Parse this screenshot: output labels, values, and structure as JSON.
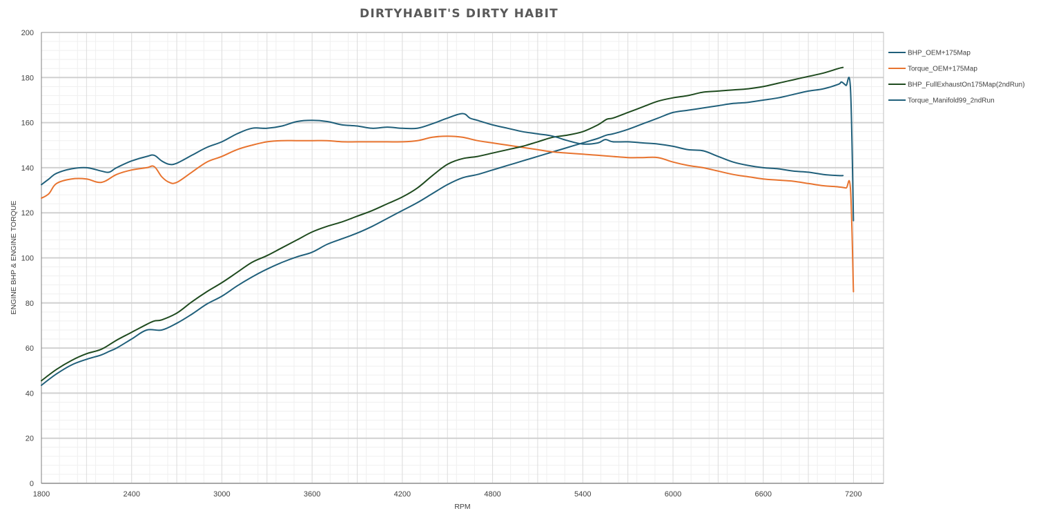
{
  "chart_data": {
    "type": "line",
    "title": "DIRTYHABIT'S DIRTY HABIT",
    "xlabel": "RPM",
    "ylabel": "ENGINE BHP & ENGINE TORQUE",
    "xlim": [
      1800,
      7400
    ],
    "ylim": [
      0,
      200
    ],
    "xticks": [
      1800,
      2400,
      3000,
      3600,
      4200,
      4800,
      5400,
      6000,
      6600,
      7200
    ],
    "yticks": [
      0,
      20,
      40,
      60,
      80,
      100,
      120,
      140,
      160,
      180,
      200
    ],
    "grid": true,
    "legend_position": "right",
    "series": [
      {
        "name": "BHP_OEM+175Map",
        "color": "#1f5f7a",
        "x": [
          1800,
          1900,
          2000,
          2100,
          2200,
          2250,
          2300,
          2400,
          2500,
          2600,
          2700,
          2800,
          2900,
          3000,
          3100,
          3200,
          3300,
          3400,
          3500,
          3600,
          3700,
          3800,
          3900,
          4000,
          4100,
          4200,
          4300,
          4400,
          4500,
          4600,
          4700,
          4800,
          4900,
          5000,
          5100,
          5200,
          5300,
          5400,
          5500,
          5560,
          5600,
          5700,
          5800,
          5900,
          6000,
          6100,
          6200,
          6300,
          6400,
          6500,
          6600,
          6700,
          6800,
          6900,
          7000,
          7100,
          7120,
          7150,
          7180,
          7200
        ],
        "y": [
          43.5,
          48.5,
          52.5,
          55,
          57,
          58.5,
          60,
          64,
          68,
          68,
          71,
          75,
          79.5,
          83,
          87.5,
          91.5,
          95,
          98,
          100.5,
          102.5,
          106,
          108.5,
          111,
          114,
          117.5,
          121,
          124.5,
          128.5,
          132.5,
          135.5,
          137,
          139,
          141,
          143,
          145,
          147,
          149,
          151,
          153,
          154.5,
          155,
          157,
          159.5,
          162,
          164.5,
          165.5,
          166.5,
          167.5,
          168.5,
          169,
          170,
          171,
          172.5,
          174,
          175,
          177,
          178,
          176.5,
          175,
          116.5
        ]
      },
      {
        "name": "Torque_OEM+175Map",
        "color": "#e8732e",
        "x": [
          1800,
          1850,
          1900,
          2000,
          2100,
          2200,
          2300,
          2400,
          2500,
          2550,
          2600,
          2650,
          2700,
          2800,
          2900,
          3000,
          3100,
          3200,
          3300,
          3400,
          3500,
          3600,
          3700,
          3800,
          3900,
          4000,
          4100,
          4200,
          4300,
          4400,
          4500,
          4600,
          4700,
          4800,
          4900,
          5000,
          5100,
          5200,
          5300,
          5400,
          5500,
          5600,
          5700,
          5800,
          5900,
          6000,
          6100,
          6200,
          6300,
          6400,
          6500,
          6600,
          6700,
          6800,
          6900,
          7000,
          7100,
          7150,
          7180,
          7200
        ],
        "y": [
          126.5,
          128.5,
          133,
          135,
          135,
          133.5,
          137,
          139,
          140,
          140.5,
          136,
          133.5,
          133.5,
          138,
          142.5,
          145,
          148,
          150,
          151.5,
          152,
          152,
          152,
          152,
          151.5,
          151.5,
          151.5,
          151.5,
          151.5,
          152,
          153.5,
          154,
          153.5,
          152,
          151,
          150,
          149,
          148,
          147,
          146.5,
          146,
          145.5,
          145,
          144.5,
          144.5,
          144.5,
          142.5,
          141,
          140,
          138.5,
          137,
          136,
          135,
          134.5,
          134,
          133,
          132,
          131.5,
          131,
          130.5,
          85
        ]
      },
      {
        "name": "BHP_FullExhaustOn175Map(2ndRun)",
        "color": "#1e4a1e",
        "x": [
          1800,
          1900,
          2000,
          2100,
          2200,
          2300,
          2400,
          2500,
          2550,
          2600,
          2700,
          2800,
          2900,
          3000,
          3100,
          3200,
          3300,
          3400,
          3500,
          3600,
          3700,
          3800,
          3900,
          4000,
          4100,
          4200,
          4300,
          4400,
          4500,
          4600,
          4700,
          4800,
          4900,
          5000,
          5100,
          5200,
          5300,
          5400,
          5500,
          5560,
          5600,
          5700,
          5800,
          5900,
          6000,
          6100,
          6200,
          6300,
          6400,
          6500,
          6600,
          6700,
          6800,
          6900,
          7000,
          7100,
          7130
        ],
        "y": [
          45.5,
          50.5,
          54.5,
          57.5,
          59.5,
          63.5,
          67,
          70.5,
          72,
          72.5,
          75.5,
          80.5,
          85,
          89,
          93.5,
          98,
          101,
          104.5,
          108,
          111.5,
          114,
          116,
          118.5,
          121,
          124,
          127,
          131,
          136.5,
          141.5,
          144,
          145,
          146.5,
          148,
          149.5,
          151.5,
          153.5,
          154.5,
          156,
          159,
          161.5,
          162,
          164.5,
          167,
          169.5,
          171,
          172,
          173.5,
          174,
          174.5,
          175,
          176,
          177.5,
          179,
          180.5,
          182,
          184,
          184.5
        ]
      },
      {
        "name": "Torque_Manifold99_2ndRun",
        "color": "#1f5f7a",
        "x": [
          1800,
          1850,
          1900,
          2000,
          2100,
          2200,
          2250,
          2300,
          2400,
          2500,
          2550,
          2600,
          2650,
          2700,
          2800,
          2900,
          3000,
          3100,
          3200,
          3300,
          3400,
          3500,
          3600,
          3700,
          3800,
          3900,
          4000,
          4100,
          4200,
          4300,
          4400,
          4500,
          4600,
          4650,
          4700,
          4800,
          4900,
          5000,
          5100,
          5200,
          5300,
          5400,
          5500,
          5550,
          5600,
          5700,
          5800,
          5900,
          6000,
          6100,
          6200,
          6300,
          6400,
          6500,
          6600,
          6700,
          6800,
          6900,
          7000,
          7100,
          7130
        ],
        "y": [
          132.5,
          135,
          137.5,
          139.5,
          140,
          138.5,
          138,
          140,
          143,
          145,
          145.5,
          143,
          141.5,
          142,
          145.5,
          149,
          151.5,
          155,
          157.5,
          157.5,
          158.5,
          160.5,
          161,
          160.5,
          159,
          158.5,
          157.5,
          158,
          157.5,
          157.5,
          159.5,
          162,
          164,
          162,
          161,
          159,
          157.5,
          156,
          155,
          154,
          152,
          150.5,
          151,
          152.5,
          151.5,
          151.5,
          151,
          150.5,
          149.5,
          148,
          147.5,
          145,
          142.5,
          141,
          140,
          139.5,
          138.5,
          138,
          137,
          136.5,
          136.5
        ]
      }
    ]
  }
}
